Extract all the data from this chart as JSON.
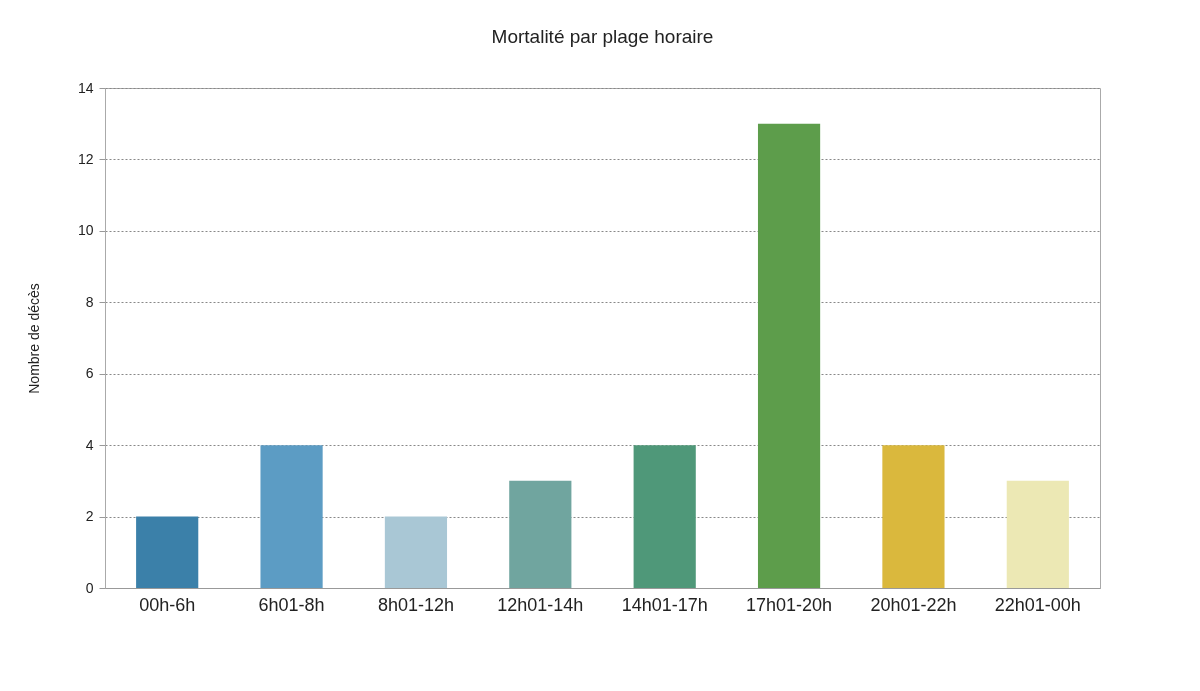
{
  "chart_data": {
    "type": "bar",
    "title": "Mortalité par plage horaire",
    "ylabel": "Nombre de décès",
    "categories": [
      "00h-6h",
      "6h01-8h",
      "8h01-12h",
      "12h01-14h",
      "14h01-17h",
      "17h01-20h",
      "20h01-22h",
      "22h01-00h"
    ],
    "values": [
      2,
      4,
      2,
      3,
      4,
      13,
      4,
      3
    ],
    "colors": [
      "#3b80a9",
      "#5c9cc4",
      "#a9c7d5",
      "#70a59f",
      "#4f9879",
      "#5d9d4b",
      "#dab83d",
      "#ece8b4"
    ],
    "ylim": [
      0,
      14
    ],
    "yticks": [
      0,
      2,
      4,
      6,
      8,
      10,
      12,
      14
    ],
    "grid": "y"
  }
}
